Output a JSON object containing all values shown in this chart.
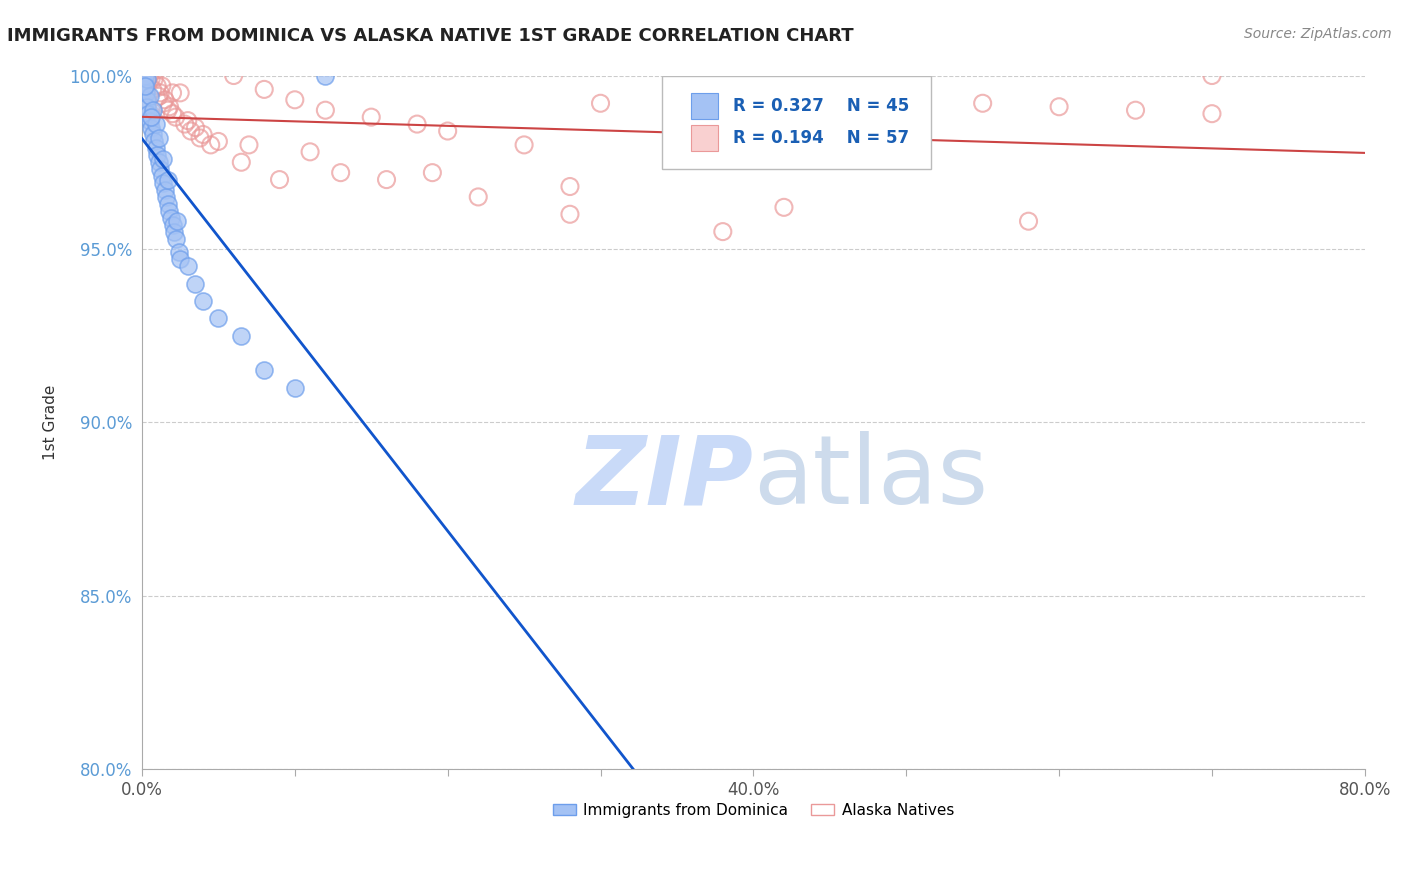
{
  "title": "IMMIGRANTS FROM DOMINICA VS ALASKA NATIVE 1ST GRADE CORRELATION CHART",
  "source_text": "Source: ZipAtlas.com",
  "ylabel": "1st Grade",
  "xlim": [
    0.0,
    80.0
  ],
  "ylim": [
    80.0,
    100.0
  ],
  "xticks": [
    0.0,
    10.0,
    20.0,
    30.0,
    40.0,
    50.0,
    60.0,
    70.0,
    80.0
  ],
  "xtick_labels": [
    "0.0%",
    "",
    "",
    "",
    "40.0%",
    "",
    "",
    "",
    "80.0%"
  ],
  "yticks": [
    80.0,
    85.0,
    90.0,
    95.0,
    100.0
  ],
  "blue_fill_color": "#a4c2f4",
  "blue_edge_color": "#6d9eeb",
  "pink_edge_color": "#ea9999",
  "blue_line_color": "#1155cc",
  "pink_line_color": "#cc4444",
  "legend_R_blue": "R = 0.327",
  "legend_N_blue": "N = 45",
  "legend_R_pink": "R = 0.194",
  "legend_N_pink": "N = 57",
  "watermark_color": "#c9daf8",
  "blue_scatter_x": [
    0.1,
    0.15,
    0.2,
    0.25,
    0.3,
    0.35,
    0.4,
    0.5,
    0.6,
    0.7,
    0.8,
    0.9,
    1.0,
    1.1,
    1.2,
    1.3,
    1.4,
    1.5,
    1.6,
    1.7,
    1.8,
    1.9,
    2.0,
    2.1,
    2.2,
    2.4,
    2.5,
    0.3,
    0.5,
    0.7,
    0.9,
    1.1,
    1.4,
    1.7,
    2.3,
    3.0,
    3.5,
    4.0,
    5.0,
    6.5,
    8.0,
    10.0,
    12.0,
    0.2,
    0.6
  ],
  "blue_scatter_y": [
    99.6,
    99.8,
    100.0,
    99.5,
    99.3,
    99.1,
    98.9,
    98.7,
    98.5,
    98.3,
    98.1,
    97.9,
    97.7,
    97.5,
    97.3,
    97.1,
    96.9,
    96.7,
    96.5,
    96.3,
    96.1,
    95.9,
    95.7,
    95.5,
    95.3,
    94.9,
    94.7,
    99.9,
    99.4,
    99.0,
    98.6,
    98.2,
    97.6,
    97.0,
    95.8,
    94.5,
    94.0,
    93.5,
    93.0,
    92.5,
    91.5,
    91.0,
    100.0,
    99.7,
    98.8
  ],
  "pink_scatter_x": [
    0.3,
    0.5,
    0.8,
    1.0,
    1.2,
    1.5,
    1.8,
    2.0,
    2.5,
    3.0,
    3.5,
    4.0,
    5.0,
    6.0,
    8.0,
    10.0,
    12.0,
    15.0,
    18.0,
    20.0,
    25.0,
    30.0,
    35.0,
    40.0,
    45.0,
    55.0,
    65.0,
    70.0,
    0.4,
    0.7,
    1.1,
    1.4,
    1.7,
    2.2,
    2.8,
    3.2,
    4.5,
    6.5,
    9.0,
    13.0,
    16.0,
    22.0,
    28.0,
    38.0,
    50.0,
    60.0,
    70.0,
    0.6,
    1.3,
    2.0,
    3.8,
    7.0,
    11.0,
    19.0,
    28.0,
    42.0,
    58.0
  ],
  "pink_scatter_y": [
    99.8,
    100.0,
    99.9,
    99.7,
    99.5,
    99.3,
    99.1,
    98.9,
    99.5,
    98.7,
    98.5,
    98.3,
    98.1,
    100.0,
    99.6,
    99.3,
    99.0,
    98.8,
    98.6,
    98.4,
    98.0,
    99.2,
    99.0,
    98.5,
    99.5,
    99.2,
    99.0,
    100.0,
    99.8,
    99.6,
    99.4,
    99.2,
    99.0,
    98.8,
    98.6,
    98.4,
    98.0,
    97.5,
    97.0,
    97.2,
    97.0,
    96.5,
    96.0,
    95.5,
    99.3,
    99.1,
    98.9,
    99.9,
    99.7,
    99.5,
    98.2,
    98.0,
    97.8,
    97.2,
    96.8,
    96.2,
    95.8
  ]
}
